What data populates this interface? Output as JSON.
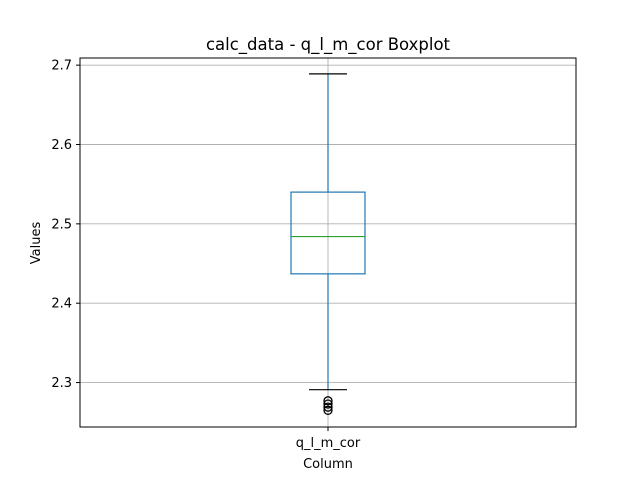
{
  "chart_data": {
    "type": "boxplot",
    "title": "calc_data - q_l_m_cor Boxplot",
    "xlabel": "Column",
    "ylabel": "Values",
    "categories": [
      "q_l_m_cor"
    ],
    "ylim": [
      2.244,
      2.709
    ],
    "yticks": [
      2.3,
      2.4,
      2.5,
      2.6,
      2.7
    ],
    "ytick_labels": [
      "2.3",
      "2.4",
      "2.5",
      "2.6",
      "2.7"
    ],
    "grid": true,
    "boxes": [
      {
        "name": "q_l_m_cor",
        "whisker_low": 2.291,
        "q1": 2.437,
        "median": 2.484,
        "q3": 2.54,
        "whisker_high": 2.689,
        "outliers": [
          2.277,
          2.273,
          2.269,
          2.265
        ]
      }
    ],
    "colors": {
      "box": "#1f77b4",
      "median": "#2ca02c",
      "whisker": "#1f77b4",
      "cap": "#000000",
      "grid": "#b0b0b0",
      "outlier": "#000000"
    }
  }
}
